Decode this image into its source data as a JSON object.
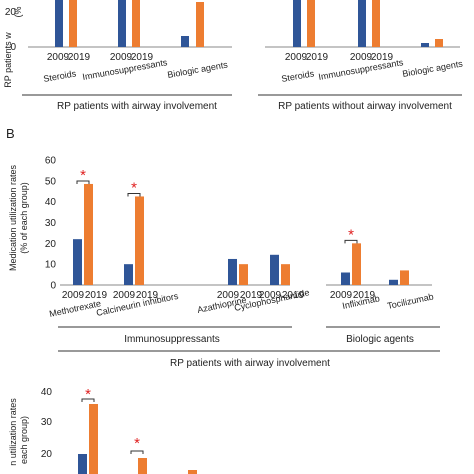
{
  "colors": {
    "y2009": "#2f5597",
    "y2019": "#ed7d31",
    "star": "#e02020",
    "axis": "#888888"
  },
  "chart_data": [
    {
      "type": "bar",
      "panel": "A (partial)",
      "y_tick_labels": [
        "20",
        "0"
      ],
      "ylabel_fragment": "RP patients w",
      "ylabel_fragment2": "(%",
      "groups": [
        {
          "label": "RP patients with airway involvement",
          "categories": [
            "Steroids",
            "Immunosuppressants",
            "Biologic agents"
          ],
          "year_labels": [
            "2009",
            "2019"
          ],
          "series": [
            {
              "name": "2009",
              "values": [
                null,
                null,
                8
              ]
            },
            {
              "name": "2019",
              "values": [
                null,
                null,
                30
              ]
            }
          ]
        },
        {
          "label": "RP patients without airway involvement",
          "categories": [
            "Steroids",
            "Immunosuppressants",
            "Biologic agents"
          ],
          "year_labels": [
            "2009",
            "2019"
          ],
          "series": [
            {
              "name": "2009",
              "values": [
                null,
                null,
                2
              ]
            },
            {
              "name": "2019",
              "values": [
                null,
                null,
                5
              ]
            }
          ]
        }
      ]
    },
    {
      "type": "bar",
      "panel": "B",
      "panel_label": "B",
      "ylabel": [
        "Medication utilization rates",
        "(% of each group)"
      ],
      "ylim": [
        0,
        60
      ],
      "y_tick_labels": [
        "60",
        "50",
        "40",
        "30",
        "20",
        "10",
        "0"
      ],
      "year_labels": [
        "2009",
        "2019"
      ],
      "categories": [
        "Methotrexate",
        "Calcineurin inhibitors",
        "Azathioprine",
        "Cyclophosphamide",
        "Infliximab",
        "Tocilizumab"
      ],
      "series": [
        {
          "name": "2009",
          "values": [
            22,
            10,
            12.5,
            14.5,
            6,
            2.5
          ]
        },
        {
          "name": "2019",
          "values": [
            48.5,
            42.5,
            10,
            10,
            20,
            7
          ]
        }
      ],
      "significance": [
        "*",
        "*",
        "",
        "",
        "*",
        ""
      ],
      "category_groups": [
        {
          "label": "Immunosuppressants"
        },
        {
          "label": "Biologic agents"
        }
      ],
      "outer_label": "RP patients with airway involvement"
    },
    {
      "type": "bar",
      "panel": "C (partial)",
      "ylabel_fragments": [
        "n utilization rates",
        "each group)"
      ],
      "y_tick_labels": [
        "40",
        "30",
        "20"
      ],
      "series": [
        {
          "name": "2009",
          "values": [
            19.5
          ]
        },
        {
          "name": "2019",
          "values": [
            36,
            19
          ]
        }
      ],
      "significance": [
        "*",
        "*"
      ]
    }
  ]
}
